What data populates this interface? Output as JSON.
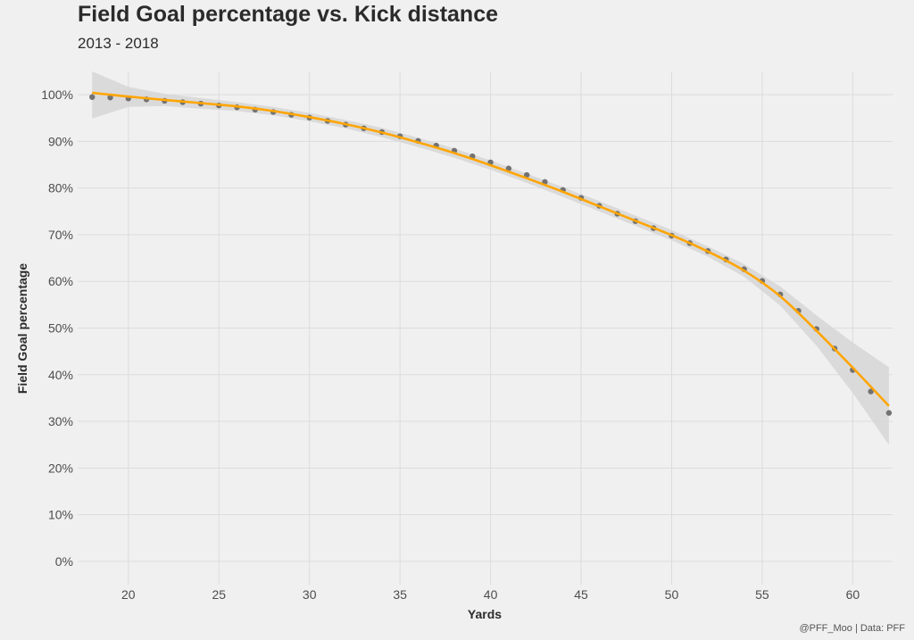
{
  "title": "Field Goal percentage vs. Kick distance",
  "subtitle": "2013 - 2018",
  "caption": "@PFF_Moo | Data: PFF",
  "colors": {
    "background": "#f0f0f0",
    "grid": "#dcdcdc",
    "points": "#666666",
    "trend_line": "#ffa500",
    "confidence_band": "#d6d6d6"
  },
  "chart_data": {
    "type": "scatter",
    "title": "Field Goal percentage vs. Kick distance",
    "subtitle": "2013 - 2018",
    "xlabel": "Yards",
    "ylabel": "Field Goal percentage",
    "xlim": [
      17.2,
      62.2
    ],
    "ylim": [
      -5,
      105
    ],
    "x_ticks": [
      20,
      25,
      30,
      35,
      40,
      45,
      50,
      55,
      60
    ],
    "x_tick_labels": [
      "20",
      "25",
      "30",
      "35",
      "40",
      "45",
      "50",
      "55",
      "60"
    ],
    "y_ticks": [
      0,
      10,
      20,
      30,
      40,
      50,
      60,
      70,
      80,
      90,
      100
    ],
    "y_tick_labels": [
      "0%",
      "10%",
      "20%",
      "30%",
      "40%",
      "50%",
      "60%",
      "70%",
      "80%",
      "90%",
      "100%"
    ],
    "grid": true,
    "series": [
      {
        "kind": "points",
        "x": [
          18,
          19,
          20,
          21,
          22,
          23,
          24,
          25,
          26,
          27,
          28,
          29,
          30,
          31,
          32,
          33,
          34,
          35,
          36,
          37,
          38,
          39,
          40,
          41,
          42,
          43,
          44,
          45,
          46,
          47,
          48,
          49,
          50,
          51,
          52,
          53,
          54,
          55,
          56,
          57,
          58,
          59,
          60,
          61,
          62
        ],
        "y": [
          99.5,
          99.4,
          99.2,
          99.0,
          98.7,
          98.4,
          98.1,
          97.7,
          97.3,
          96.8,
          96.3,
          95.7,
          95.1,
          94.4,
          93.6,
          92.8,
          92.0,
          91.1,
          90.1,
          89.1,
          88.0,
          86.8,
          85.5,
          84.2,
          82.8,
          81.3,
          79.6,
          77.9,
          76.2,
          74.5,
          72.9,
          71.4,
          69.8,
          68.2,
          66.5,
          64.7,
          62.6,
          60.1,
          57.2,
          53.7,
          49.8,
          45.6,
          41.0,
          36.4,
          31.8
        ]
      },
      {
        "kind": "smooth",
        "x": [
          18,
          20,
          22,
          24,
          26,
          28,
          30,
          32,
          34,
          36,
          38,
          40,
          42,
          44,
          46,
          48,
          50,
          52,
          54,
          56,
          58,
          60,
          62
        ],
        "y": [
          100.4,
          99.6,
          98.9,
          98.2,
          97.5,
          96.5,
          95.2,
          93.7,
          91.9,
          89.8,
          87.5,
          84.9,
          82.1,
          79.2,
          76.1,
          73.0,
          69.9,
          66.4,
          62.3,
          56.8,
          49.4,
          41.5,
          33.3
        ],
        "lower": [
          94.9,
          97.4,
          97.6,
          97.0,
          96.5,
          95.6,
          94.3,
          92.8,
          90.9,
          88.8,
          86.5,
          83.9,
          81.1,
          78.1,
          75.0,
          71.9,
          68.8,
          65.3,
          61.0,
          54.8,
          46.2,
          36.1,
          25.0
        ],
        "upper": [
          105.0,
          101.7,
          100.2,
          99.3,
          98.4,
          97.4,
          96.1,
          94.6,
          92.9,
          90.8,
          88.5,
          85.9,
          83.1,
          80.2,
          77.2,
          74.1,
          71.0,
          67.5,
          63.7,
          58.9,
          52.7,
          46.9,
          41.6
        ]
      }
    ]
  }
}
